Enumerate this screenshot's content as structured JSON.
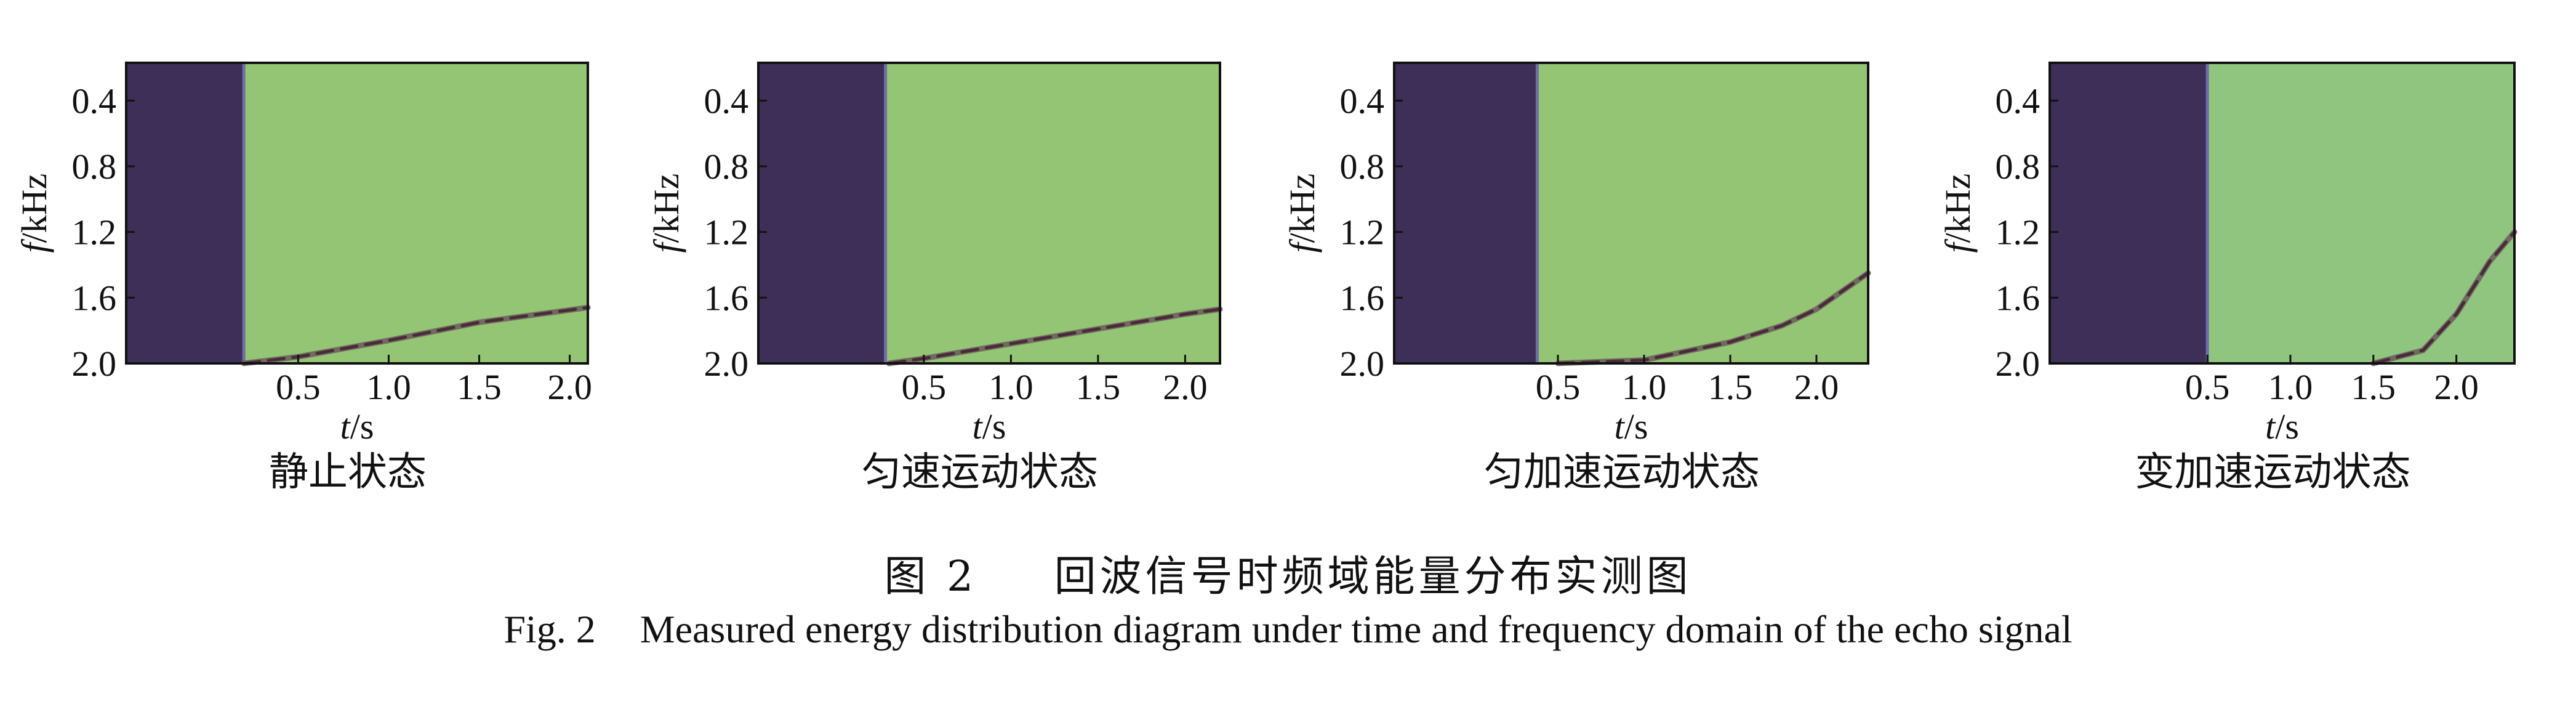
{
  "figure": {
    "caption_cn_label": "图 2",
    "caption_cn_text": "回波信号时频域能量分布实测图",
    "caption_en_label": "Fig. 2",
    "caption_en_text": "Measured energy distribution diagram under time and frequency domain of the echo signal"
  },
  "colors": {
    "background_field": "#93c574",
    "background_field_panel4": "#8fc57e",
    "dark_band": "#3e2f58",
    "band_edge": "#6f6fa6",
    "trace": "#4a2a3a",
    "trace_mid": "#6b5a5a",
    "axis": "#111111"
  },
  "chart_data": [
    {
      "type": "heatmap",
      "title": "静止状态",
      "xlabel_var": "t",
      "xlabel_unit": "/s",
      "ylabel_var": "f",
      "ylabel_unit": "/kHz",
      "xlim": [
        -0.45,
        2.1
      ],
      "ylim": [
        2.0,
        0.17
      ],
      "y_inverted": true,
      "xticks": [
        0.5,
        1.0,
        1.5,
        2.0
      ],
      "xtick_labels": [
        "0.5",
        "1.0",
        "1.5",
        "2.0"
      ],
      "yticks": [
        0.4,
        0.8,
        1.2,
        1.6,
        2.0
      ],
      "ytick_labels": [
        "0.4",
        "0.8",
        "1.2",
        "1.6",
        "2.0"
      ],
      "no_energy_band_x": [
        -0.45,
        0.2
      ],
      "trace": {
        "x": [
          0.2,
          0.5,
          1.0,
          1.5,
          2.1
        ],
        "y": [
          2.0,
          1.96,
          1.86,
          1.75,
          1.66
        ]
      }
    },
    {
      "type": "heatmap",
      "title": "匀速运动状态",
      "xlabel_var": "t",
      "xlabel_unit": "/s",
      "ylabel_var": "f",
      "ylabel_unit": "/kHz",
      "xlim": [
        -0.45,
        2.2
      ],
      "ylim": [
        2.0,
        0.17
      ],
      "y_inverted": true,
      "xticks": [
        0.5,
        1.0,
        1.5,
        2.0
      ],
      "xtick_labels": [
        "0.5",
        "1.0",
        "1.5",
        "2.0"
      ],
      "yticks": [
        0.4,
        0.8,
        1.2,
        1.6,
        2.0
      ],
      "ytick_labels": [
        "0.4",
        "0.8",
        "1.2",
        "1.6",
        "2.0"
      ],
      "no_energy_band_x": [
        -0.45,
        0.28
      ],
      "trace": {
        "x": [
          0.3,
          0.5,
          1.0,
          1.5,
          2.0,
          2.2
        ],
        "y": [
          2.0,
          1.97,
          1.88,
          1.79,
          1.7,
          1.67
        ]
      }
    },
    {
      "type": "heatmap",
      "title": "匀加速运动状态",
      "xlabel_var": "t",
      "xlabel_unit": "/s",
      "ylabel_var": "f",
      "ylabel_unit": "/kHz",
      "xlim": [
        -0.45,
        2.3
      ],
      "ylim": [
        2.0,
        0.17
      ],
      "y_inverted": true,
      "xticks": [
        0.5,
        1.0,
        1.5,
        2.0
      ],
      "xtick_labels": [
        "0.5",
        "1.0",
        "1.5",
        "2.0"
      ],
      "yticks": [
        0.4,
        0.8,
        1.2,
        1.6,
        2.0
      ],
      "ytick_labels": [
        "0.4",
        "0.8",
        "1.2",
        "1.6",
        "2.0"
      ],
      "no_energy_band_x": [
        -0.45,
        0.38
      ],
      "trace": {
        "x": [
          0.5,
          1.0,
          1.5,
          1.8,
          2.0,
          2.3
        ],
        "y": [
          2.0,
          1.98,
          1.87,
          1.77,
          1.67,
          1.45
        ]
      }
    },
    {
      "type": "heatmap",
      "title": "变加速运动状态",
      "xlabel_var": "t",
      "xlabel_unit": "/s",
      "ylabel_var": "f",
      "ylabel_unit": "/kHz",
      "xlim": [
        -0.45,
        2.35
      ],
      "ylim": [
        2.0,
        0.17
      ],
      "y_inverted": true,
      "xticks": [
        0.5,
        1.0,
        1.5,
        2.0
      ],
      "xtick_labels": [
        "0.5",
        "1.0",
        "1.5",
        "2.0"
      ],
      "yticks": [
        0.4,
        0.8,
        1.2,
        1.6,
        2.0
      ],
      "ytick_labels": [
        "0.4",
        "0.8",
        "1.2",
        "1.6",
        "2.0"
      ],
      "no_energy_band_x": [
        -0.45,
        0.5
      ],
      "trace": {
        "x": [
          1.5,
          1.8,
          2.0,
          2.2,
          2.35
        ],
        "y": [
          2.0,
          1.92,
          1.7,
          1.38,
          1.2
        ]
      }
    }
  ]
}
